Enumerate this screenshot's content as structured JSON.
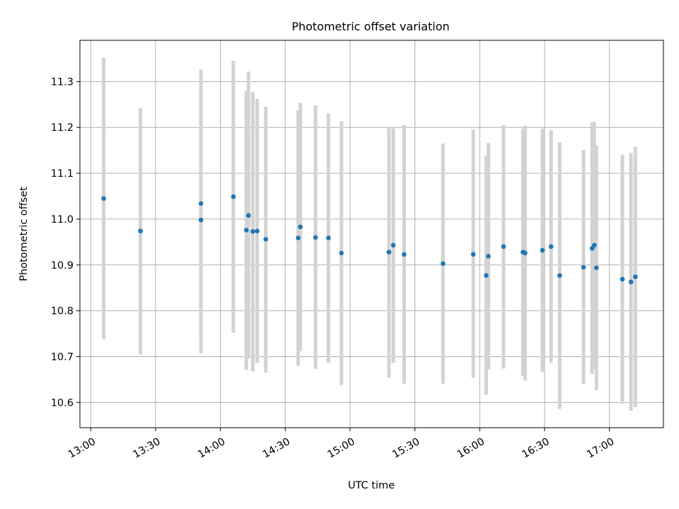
{
  "chart_data": {
    "type": "scatter",
    "title": "Photometric offset variation",
    "xlabel": "UTC time",
    "ylabel": "Photometric offset",
    "xlim": [
      "12:55",
      "17:25"
    ],
    "ylim": [
      10.545,
      11.39
    ],
    "x_ticks": [
      "13:00",
      "13:30",
      "14:00",
      "14:30",
      "15:00",
      "15:30",
      "16:00",
      "16:30",
      "17:00"
    ],
    "y_ticks": [
      10.6,
      10.7,
      10.8,
      10.9,
      11.0,
      11.1,
      11.2,
      11.3
    ],
    "grid": true,
    "colors": {
      "marker": "#1f77b4",
      "errorbar": "#d3d3d3",
      "grid": "#b0b0b0",
      "axes": "#000000"
    },
    "points": [
      {
        "time": "13:06",
        "y": 11.045,
        "ylow": 10.738,
        "yhigh": 11.352
      },
      {
        "time": "13:23",
        "y": 10.974,
        "ylow": 10.705,
        "yhigh": 11.242
      },
      {
        "time": "13:51",
        "y": 10.998,
        "ylow": 10.707,
        "yhigh": 11.283
      },
      {
        "time": "13:51",
        "y": 11.034,
        "ylow": 10.742,
        "yhigh": 11.326
      },
      {
        "time": "14:06",
        "y": 11.049,
        "ylow": 10.752,
        "yhigh": 11.345
      },
      {
        "time": "14:12",
        "y": 10.976,
        "ylow": 10.671,
        "yhigh": 11.28
      },
      {
        "time": "14:13",
        "y": 11.008,
        "ylow": 10.696,
        "yhigh": 11.322
      },
      {
        "time": "14:15",
        "y": 10.973,
        "ylow": 10.668,
        "yhigh": 11.277
      },
      {
        "time": "14:17",
        "y": 10.974,
        "ylow": 10.686,
        "yhigh": 11.262
      },
      {
        "time": "14:21",
        "y": 10.956,
        "ylow": 10.665,
        "yhigh": 11.245
      },
      {
        "time": "14:36",
        "y": 10.959,
        "ylow": 10.68,
        "yhigh": 11.237
      },
      {
        "time": "14:37",
        "y": 10.983,
        "ylow": 10.712,
        "yhigh": 11.254
      },
      {
        "time": "14:44",
        "y": 10.96,
        "ylow": 10.673,
        "yhigh": 11.248
      },
      {
        "time": "14:50",
        "y": 10.959,
        "ylow": 10.686,
        "yhigh": 11.231
      },
      {
        "time": "14:56",
        "y": 10.926,
        "ylow": 10.638,
        "yhigh": 11.213
      },
      {
        "time": "15:18",
        "y": 10.928,
        "ylow": 10.654,
        "yhigh": 11.198
      },
      {
        "time": "15:20",
        "y": 10.943,
        "ylow": 10.686,
        "yhigh": 11.198
      },
      {
        "time": "15:25",
        "y": 10.923,
        "ylow": 10.641,
        "yhigh": 11.205
      },
      {
        "time": "15:43",
        "y": 10.903,
        "ylow": 10.641,
        "yhigh": 11.165
      },
      {
        "time": "15:57",
        "y": 10.923,
        "ylow": 10.654,
        "yhigh": 11.195
      },
      {
        "time": "16:03",
        "y": 10.877,
        "ylow": 10.617,
        "yhigh": 11.138
      },
      {
        "time": "16:04",
        "y": 10.919,
        "ylow": 10.672,
        "yhigh": 11.166
      },
      {
        "time": "16:11",
        "y": 10.94,
        "ylow": 10.674,
        "yhigh": 11.205
      },
      {
        "time": "16:20",
        "y": 10.928,
        "ylow": 10.658,
        "yhigh": 11.197
      },
      {
        "time": "16:21",
        "y": 10.926,
        "ylow": 10.648,
        "yhigh": 11.204
      },
      {
        "time": "16:29",
        "y": 10.932,
        "ylow": 10.667,
        "yhigh": 11.197
      },
      {
        "time": "16:33",
        "y": 10.94,
        "ylow": 10.686,
        "yhigh": 11.194
      },
      {
        "time": "16:37",
        "y": 10.877,
        "ylow": 10.586,
        "yhigh": 11.168
      },
      {
        "time": "16:48",
        "y": 10.895,
        "ylow": 10.64,
        "yhigh": 11.151
      },
      {
        "time": "16:52",
        "y": 10.936,
        "ylow": 10.662,
        "yhigh": 11.211
      },
      {
        "time": "16:53",
        "y": 10.943,
        "ylow": 10.673,
        "yhigh": 11.212
      },
      {
        "time": "16:54",
        "y": 10.894,
        "ylow": 10.627,
        "yhigh": 11.161
      },
      {
        "time": "17:06",
        "y": 10.869,
        "ylow": 10.597,
        "yhigh": 11.141
      },
      {
        "time": "17:10",
        "y": 10.863,
        "ylow": 10.582,
        "yhigh": 11.144
      },
      {
        "time": "17:12",
        "y": 10.874,
        "ylow": 10.59,
        "yhigh": 11.158
      }
    ]
  }
}
